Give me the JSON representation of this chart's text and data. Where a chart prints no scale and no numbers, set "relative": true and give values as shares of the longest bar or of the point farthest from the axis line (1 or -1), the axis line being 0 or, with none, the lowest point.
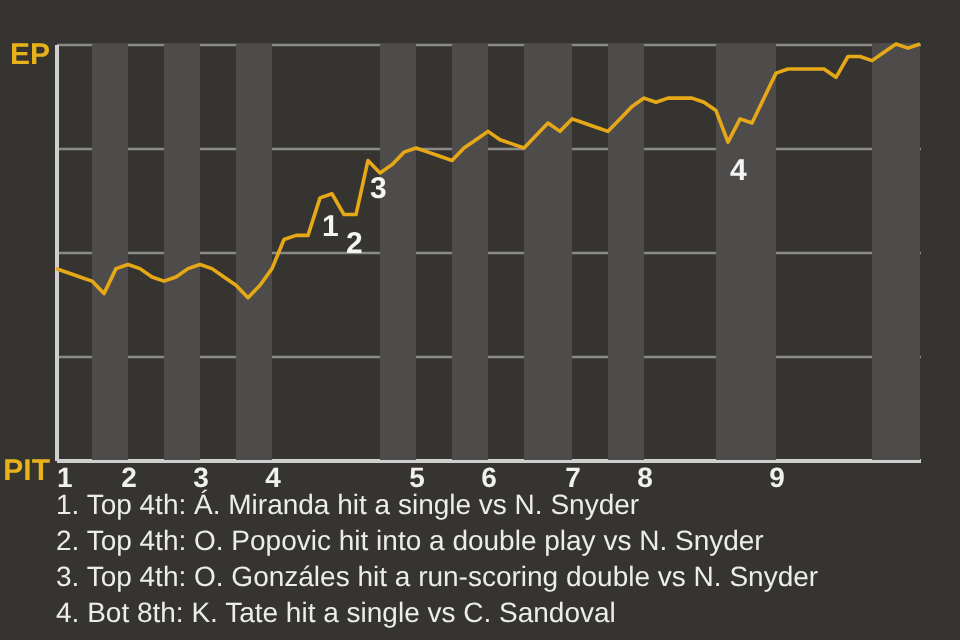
{
  "chart_data": {
    "type": "line",
    "relative": true,
    "categories": [
      "1",
      null,
      null,
      null,
      null,
      null,
      "2",
      null,
      null,
      null,
      null,
      null,
      "3",
      null,
      null,
      null,
      null,
      null,
      "4",
      null,
      null,
      null,
      null,
      null,
      null,
      null,
      null,
      null,
      null,
      null,
      "5",
      null,
      null,
      null,
      null,
      null,
      "6",
      null,
      null,
      null,
      null,
      null,
      null,
      "7",
      null,
      null,
      null,
      null,
      null,
      "8",
      null,
      null,
      null,
      null,
      null,
      null,
      null,
      null,
      null,
      null,
      "9",
      null,
      null,
      null,
      null,
      null,
      null,
      null,
      null,
      null,
      null,
      null,
      null
    ],
    "series": [
      {
        "color": "#e6a817",
        "values": [
          0.46,
          0.45,
          0.44,
          0.43,
          0.4,
          0.46,
          0.47,
          0.46,
          0.44,
          0.43,
          0.44,
          0.46,
          0.47,
          0.46,
          0.44,
          0.42,
          0.39,
          0.42,
          0.46,
          0.53,
          0.54,
          0.54,
          0.63,
          0.64,
          0.59,
          0.59,
          0.72,
          0.69,
          0.71,
          0.74,
          0.75,
          0.74,
          0.73,
          0.72,
          0.75,
          0.77,
          0.79,
          0.77,
          0.76,
          0.75,
          0.78,
          0.81,
          0.79,
          0.82,
          0.81,
          0.8,
          0.79,
          0.82,
          0.85,
          0.87,
          0.86,
          0.87,
          0.87,
          0.87,
          0.86,
          0.84,
          0.764,
          0.82,
          0.81,
          0.87,
          0.93,
          0.94,
          0.94,
          0.94,
          0.94,
          0.92,
          0.97,
          0.97,
          0.96,
          0.98,
          1.0,
          0.99,
          1.0
        ]
      }
    ],
    "grid": "y",
    "annotations": [
      "EP",
      "PIT",
      {
        "text": "1",
        "y": 0.63
      },
      {
        "text": "2",
        "y": 0.59
      },
      {
        "text": "3",
        "y": 0.72
      },
      {
        "text": "4",
        "y": 0.764
      },
      "1. Top 4th: Á. Miranda hit a single vs N. Snyder",
      "2. Top 4th: O. Popovic hit into a double play vs N. Snyder",
      "3. Top 4th: O. Gonzáles hit a run-scoring double vs N. Snyder",
      "4. Bot 8th: K. Tate hit a single vs C. Sandoval"
    ]
  }
}
